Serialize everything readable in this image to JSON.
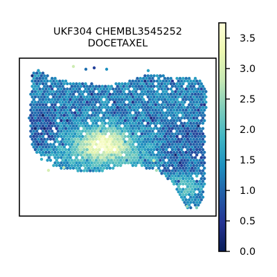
{
  "chart_data": {
    "type": "scatter",
    "title": "UKF304 CHEMBL3545252\nDOCETAXEL",
    "title_lines": [
      "UKF304 CHEMBL3545252",
      "DOCETAXEL"
    ],
    "xlabel": "",
    "ylabel": "",
    "grid": false,
    "colormap": "YlGnBu_r",
    "colorbar": {
      "min": 0.0,
      "max": 3.75,
      "ticks": [
        0.0,
        0.5,
        1.0,
        1.5,
        2.0,
        2.5,
        3.0,
        3.5
      ],
      "tick_labels": [
        "0.0",
        "0.5",
        "1.0",
        "1.5",
        "2.0",
        "2.5",
        "3.0",
        "3.5"
      ]
    },
    "colormap_stops": [
      "#081d58",
      "#253494",
      "#225ea8",
      "#1d91c0",
      "#41b6c4",
      "#7fcdbb",
      "#c7e9b4",
      "#edf8b1",
      "#ffffd9"
    ]
  }
}
